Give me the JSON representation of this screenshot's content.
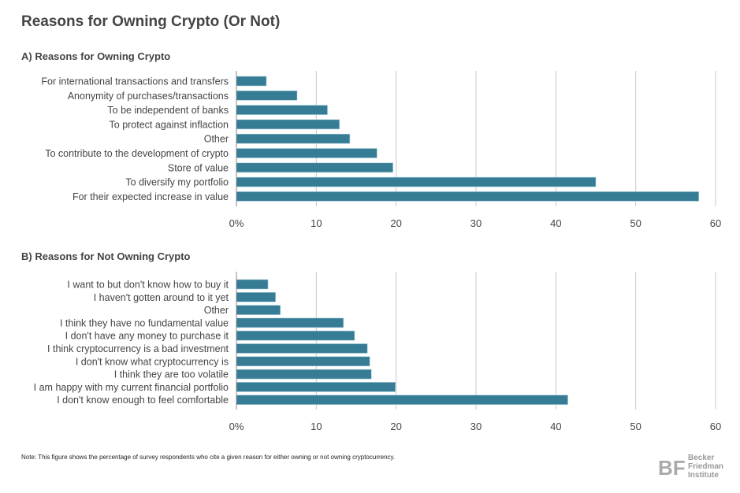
{
  "title": "Reasons for Owning Crypto (Or Not)",
  "note": "Note: This figure shows the percentage of survey respondents who cite a given reason for either owning or not owning cryptocurrency.",
  "logo": {
    "mark": "BF",
    "lines": [
      "Becker",
      "Friedman",
      "Institute"
    ]
  },
  "colors": {
    "bar": "#367c95",
    "grid": "#c8c8c8",
    "text": "#444444"
  },
  "chart_data": [
    {
      "type": "bar",
      "orientation": "horizontal",
      "title": "A) Reasons for Owning Crypto",
      "categories": [
        "For international transactions and transfers",
        "Anonymity of purchases/transactions",
        "To be independent of banks",
        "To protect against inflaction",
        "Other",
        "To contribute to the development of crypto",
        "Store of value",
        "To diversify my portfolio",
        "For their expected increase in value"
      ],
      "values": [
        3.75,
        7.6,
        11.4,
        12.9,
        14.2,
        17.6,
        19.6,
        45.0,
        57.9
      ],
      "xlim": [
        0,
        60
      ],
      "xticks": [
        "0%",
        "10",
        "20",
        "30",
        "40",
        "50",
        "60"
      ],
      "grid": true
    },
    {
      "type": "bar",
      "orientation": "horizontal",
      "title": "B) Reasons for Not Owning Crypto",
      "categories": [
        "I want to but don't know how to buy it",
        "I haven't gotten around to it yet",
        "Other",
        "I think they have no fundamental value",
        "I don't have any money to purchase it",
        "I think cryptocurrency is a bad investment",
        "I don't know what cryptocurrency is",
        "I think they are too volatile",
        "I am happy with my current financial portfolio",
        "I don't know enough to feel comfortable"
      ],
      "values": [
        3.95,
        4.9,
        5.5,
        13.4,
        14.8,
        16.4,
        16.7,
        16.9,
        19.9,
        41.5
      ],
      "xlim": [
        0,
        60
      ],
      "xticks": [
        "0%",
        "10",
        "20",
        "30",
        "40",
        "50",
        "60"
      ],
      "grid": true
    }
  ]
}
